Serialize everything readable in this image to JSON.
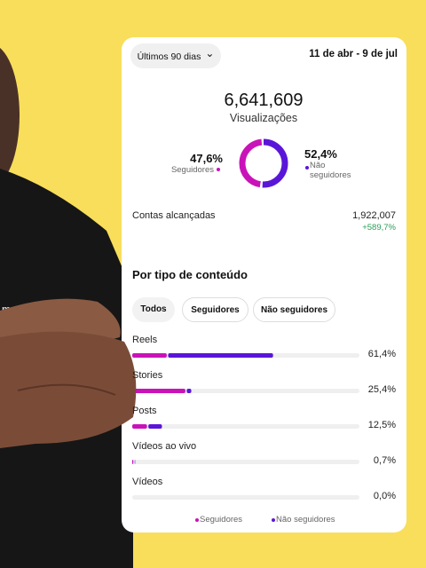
{
  "header": {
    "period": "Últimos 90 dias",
    "date_range": "11 de abr - 9 de jul"
  },
  "summary": {
    "total": "6,641,609",
    "label": "Visualizações",
    "followers": {
      "value": 47.6,
      "label": "47,6%",
      "name": "Seguidores",
      "color": "#c913b9"
    },
    "non_followers": {
      "value": 52.4,
      "label": "52,4%",
      "name": "Não seguidores",
      "color": "#5a16d8"
    }
  },
  "reach": {
    "label": "Contas alcançadas",
    "value": "1,922,007",
    "change": "+589,7%"
  },
  "content": {
    "title": "Por tipo de conteúdo",
    "tabs": [
      "Todos",
      "Seguidores",
      "Não seguidores"
    ],
    "xlim": [
      0,
      100
    ],
    "rows": [
      {
        "name": "Reels",
        "total": {
          "value": 61.4,
          "label": "61,4%"
        },
        "followers": 15.2,
        "non_followers": 46.2
      },
      {
        "name": "Stories",
        "total": {
          "value": 25.4,
          "label": "25,4%"
        },
        "followers": 23.4,
        "non_followers": 2.0
      },
      {
        "name": "Posts",
        "total": {
          "value": 12.5,
          "label": "12,5%"
        },
        "followers": 6.5,
        "non_followers": 6.0
      },
      {
        "name": "Vídeos ao vivo",
        "total": {
          "value": 0.7,
          "label": "0,7%"
        },
        "followers": 0.5,
        "non_followers": 0.2
      },
      {
        "name": "Vídeos",
        "total": {
          "value": 0.0,
          "label": "0,0%"
        },
        "followers": 0.0,
        "non_followers": 0.0
      }
    ],
    "legend": [
      "Seguidores",
      "Não seguidores"
    ]
  }
}
